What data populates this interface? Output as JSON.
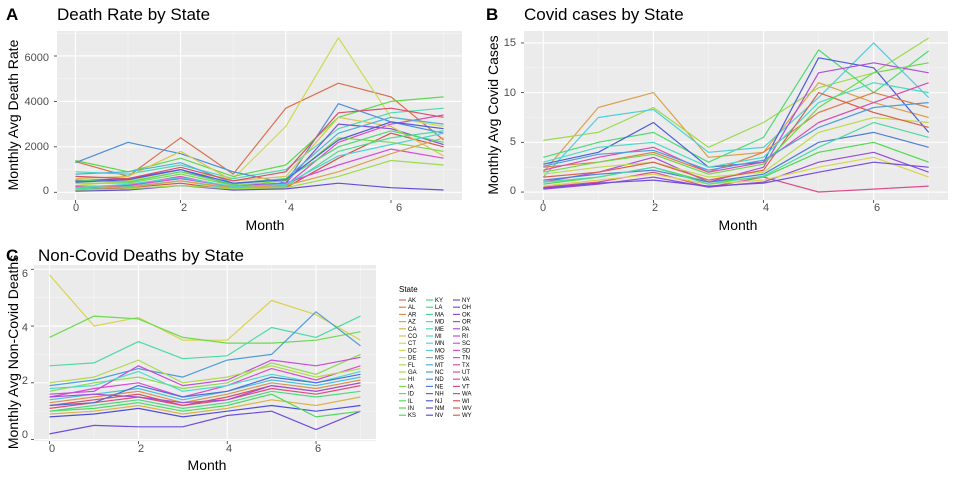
{
  "figure": {
    "panel_letters": [
      "A",
      "B",
      "C"
    ]
  },
  "legend": {
    "title": "State",
    "states": [
      "AK",
      "AL",
      "AR",
      "AZ",
      "CA",
      "CO",
      "CT",
      "DC",
      "DE",
      "FL",
      "GA",
      "HI",
      "IA",
      "ID",
      "IL",
      "IN",
      "KS",
      "KY",
      "LA",
      "MA",
      "MD",
      "ME",
      "MI",
      "MN",
      "MO",
      "MS",
      "MT",
      "NC",
      "ND",
      "NE",
      "NH",
      "NJ",
      "NM",
      "NV",
      "NY",
      "OH",
      "OK",
      "OR",
      "PA",
      "RI",
      "SC",
      "SD",
      "TN",
      "TX",
      "UT",
      "VA",
      "VT",
      "WA",
      "WI",
      "WV",
      "WY"
    ]
  },
  "chart_data": [
    {
      "panel": "A",
      "type": "line",
      "title": "Death Rate by State",
      "xlabel": "Month",
      "ylabel": "Monthly Avg Death Rate",
      "x": [
        0,
        1,
        2,
        3,
        4,
        5,
        6,
        7
      ],
      "xlim": [
        -0.35,
        7.35
      ],
      "ylim": [
        -340,
        7100
      ],
      "xticks": [
        0,
        2,
        4,
        6
      ],
      "yticks": [
        0,
        2000,
        4000,
        6000
      ],
      "grid": true,
      "series": [
        {
          "values": [
            1350,
            700,
            2400,
            800,
            3700,
            4800,
            4200,
            2300
          ]
        },
        {
          "values": [
            300,
            500,
            900,
            600,
            2900,
            6800,
            3300,
            2900
          ]
        },
        {
          "values": [
            1400,
            900,
            1500,
            700,
            1200,
            3300,
            4000,
            4200
          ]
        },
        {
          "values": [
            900,
            800,
            1200,
            600,
            1000,
            2800,
            3500,
            3700
          ]
        },
        {
          "values": [
            1300,
            2200,
            1700,
            900,
            400,
            3900,
            3100,
            2600
          ]
        },
        {
          "values": [
            500,
            600,
            1000,
            300,
            400,
            3000,
            2800,
            2100
          ]
        },
        {
          "values": [
            200,
            300,
            700,
            200,
            300,
            2200,
            3000,
            3400
          ]
        },
        {
          "values": [
            100,
            200,
            400,
            100,
            200,
            1500,
            2600,
            2000
          ]
        },
        {
          "values": [
            600,
            700,
            1800,
            500,
            700,
            3300,
            2900,
            1600
          ]
        },
        {
          "values": [
            400,
            400,
            800,
            300,
            500,
            2400,
            2200,
            1800
          ]
        },
        {
          "values": [
            150,
            250,
            500,
            150,
            250,
            1800,
            2400,
            2700
          ]
        },
        {
          "values": [
            800,
            900,
            1300,
            400,
            600,
            2600,
            3300,
            3000
          ]
        },
        {
          "values": [
            50,
            100,
            300,
            100,
            150,
            400,
            200,
            100
          ]
        },
        {
          "values": [
            250,
            300,
            600,
            250,
            400,
            1200,
            1900,
            1500
          ]
        },
        {
          "values": [
            700,
            600,
            1100,
            500,
            900,
            3500,
            3700,
            3300
          ]
        },
        {
          "values": [
            300,
            200,
            500,
            200,
            300,
            900,
            1700,
            2400
          ]
        },
        {
          "values": [
            100,
            150,
            300,
            150,
            200,
            700,
            1400,
            1200
          ]
        },
        {
          "values": [
            550,
            450,
            900,
            350,
            600,
            2000,
            2700,
            2200
          ]
        },
        {
          "values": [
            200,
            350,
            650,
            250,
            350,
            1600,
            2100,
            2600
          ]
        },
        {
          "values": [
            450,
            550,
            1000,
            400,
            550,
            2300,
            3100,
            2800
          ]
        }
      ]
    },
    {
      "panel": "B",
      "type": "line",
      "title": "Covid cases by State",
      "xlabel": "Month",
      "ylabel": "Monthly Avg Covid Cases",
      "x": [
        0,
        1,
        2,
        3,
        4,
        5,
        6,
        7
      ],
      "xlim": [
        -0.35,
        7.35
      ],
      "ylim": [
        -0.8,
        16.2
      ],
      "xticks": [
        0,
        2,
        4,
        6
      ],
      "yticks": [
        0,
        5,
        10,
        15
      ],
      "grid": true,
      "series": [
        {
          "values": [
            2.0,
            8.5,
            10.0,
            3.5,
            4.0,
            11.0,
            9.0,
            7.5
          ]
        },
        {
          "values": [
            5.2,
            6.0,
            8.5,
            4.5,
            7.0,
            10.5,
            12.0,
            15.5
          ]
        },
        {
          "values": [
            3.5,
            5.0,
            6.0,
            3.0,
            5.5,
            14.3,
            10.0,
            14.2
          ]
        },
        {
          "values": [
            1.5,
            7.5,
            8.3,
            4.0,
            4.5,
            9.5,
            15.0,
            9.5
          ]
        },
        {
          "values": [
            2.8,
            4.0,
            7.0,
            2.5,
            3.0,
            13.5,
            12.5,
            6.0
          ]
        },
        {
          "values": [
            1.0,
            2.0,
            3.5,
            1.0,
            2.5,
            12.0,
            13.0,
            12.0
          ]
        },
        {
          "values": [
            0.5,
            1.0,
            2.0,
            0.5,
            1.5,
            0.0,
            0.3,
            0.6
          ]
        },
        {
          "values": [
            2.5,
            3.0,
            4.0,
            2.0,
            4.0,
            8.0,
            10.0,
            8.5
          ]
        },
        {
          "values": [
            1.8,
            2.5,
            3.0,
            1.5,
            2.0,
            6.0,
            7.5,
            7.0
          ]
        },
        {
          "values": [
            0.8,
            1.5,
            2.5,
            1.0,
            1.5,
            4.0,
            5.0,
            3.0
          ]
        },
        {
          "values": [
            3.0,
            4.5,
            5.0,
            2.5,
            3.5,
            9.0,
            11.0,
            10.0
          ]
        },
        {
          "values": [
            1.2,
            1.8,
            2.2,
            1.0,
            1.8,
            5.0,
            6.0,
            4.5
          ]
        },
        {
          "values": [
            0.3,
            0.8,
            1.5,
            0.5,
            1.0,
            3.0,
            4.0,
            2.0
          ]
        },
        {
          "values": [
            2.2,
            3.5,
            4.5,
            2.0,
            3.0,
            7.0,
            9.0,
            11.0
          ]
        },
        {
          "values": [
            1.5,
            2.0,
            3.0,
            1.2,
            2.2,
            10.0,
            8.0,
            6.5
          ]
        },
        {
          "values": [
            0.6,
            1.2,
            1.8,
            0.8,
            1.2,
            2.5,
            3.5,
            1.5
          ]
        },
        {
          "values": [
            2.0,
            3.0,
            3.8,
            1.8,
            2.8,
            8.5,
            12.0,
            13.0
          ]
        },
        {
          "values": [
            1.0,
            1.5,
            2.5,
            0.8,
            1.6,
            4.5,
            7.0,
            5.5
          ]
        },
        {
          "values": [
            2.6,
            3.8,
            4.2,
            2.2,
            3.2,
            6.5,
            8.5,
            9.0
          ]
        },
        {
          "values": [
            0.4,
            0.9,
            1.2,
            0.6,
            0.9,
            2.0,
            3.0,
            2.5
          ]
        }
      ]
    },
    {
      "panel": "C",
      "type": "line",
      "title": "Non-Covid Deaths by State",
      "xlabel": "Month",
      "ylabel": "Monthly Avg Non-Covid Deaths",
      "x": [
        0,
        1,
        2,
        3,
        4,
        5,
        6,
        7
      ],
      "xlim": [
        -0.35,
        7.35
      ],
      "ylim": [
        -0.05,
        6.15
      ],
      "xticks": [
        0,
        2,
        4,
        6
      ],
      "yticks": [
        0,
        2,
        4,
        6
      ],
      "grid": true,
      "series": [
        {
          "values": [
            5.8,
            4.0,
            4.3,
            3.5,
            3.5,
            4.9,
            4.4,
            3.5
          ]
        },
        {
          "values": [
            3.6,
            4.35,
            4.25,
            3.6,
            3.4,
            3.4,
            3.5,
            3.8
          ]
        },
        {
          "values": [
            2.6,
            2.7,
            3.45,
            2.85,
            2.95,
            3.95,
            3.6,
            4.35
          ]
        },
        {
          "values": [
            1.9,
            2.1,
            2.5,
            2.2,
            2.8,
            3.0,
            4.5,
            3.3
          ]
        },
        {
          "values": [
            0.2,
            0.5,
            0.45,
            0.45,
            0.85,
            1.0,
            0.35,
            1.0
          ]
        },
        {
          "values": [
            1.5,
            1.8,
            2.0,
            1.5,
            1.9,
            2.5,
            2.1,
            2.6
          ]
        },
        {
          "values": [
            1.2,
            1.4,
            1.6,
            1.2,
            1.5,
            1.9,
            1.7,
            2.0
          ]
        },
        {
          "values": [
            0.9,
            1.0,
            1.2,
            0.9,
            1.1,
            1.4,
            1.2,
            1.5
          ]
        },
        {
          "values": [
            1.7,
            2.0,
            2.2,
            1.8,
            2.0,
            2.7,
            2.3,
            3.0
          ]
        },
        {
          "values": [
            1.0,
            1.2,
            1.4,
            1.1,
            1.3,
            1.7,
            1.5,
            1.7
          ]
        },
        {
          "values": [
            1.4,
            1.6,
            1.8,
            1.4,
            1.7,
            2.1,
            1.9,
            2.2
          ]
        },
        {
          "values": [
            0.8,
            0.9,
            1.1,
            0.8,
            1.0,
            1.2,
            1.0,
            1.2
          ]
        },
        {
          "values": [
            1.6,
            1.7,
            2.6,
            1.9,
            2.1,
            2.8,
            2.6,
            2.9
          ]
        },
        {
          "values": [
            1.1,
            1.3,
            1.5,
            1.2,
            1.4,
            1.8,
            1.6,
            1.9
          ]
        },
        {
          "values": [
            1.3,
            1.5,
            1.7,
            1.3,
            1.6,
            2.0,
            1.8,
            2.1
          ]
        },
        {
          "values": [
            2.0,
            2.2,
            2.8,
            2.0,
            2.2,
            2.6,
            2.2,
            2.5
          ]
        },
        {
          "values": [
            1.0,
            1.1,
            1.3,
            1.0,
            1.2,
            1.6,
            0.8,
            1.0
          ]
        },
        {
          "values": [
            1.8,
            1.9,
            2.4,
            1.7,
            1.9,
            2.3,
            2.0,
            2.4
          ]
        },
        {
          "values": [
            1.2,
            1.3,
            1.9,
            1.5,
            1.7,
            2.2,
            2.0,
            2.3
          ]
        },
        {
          "values": [
            1.5,
            1.6,
            1.5,
            1.3,
            1.4,
            1.9,
            1.7,
            2.0
          ]
        }
      ]
    }
  ]
}
